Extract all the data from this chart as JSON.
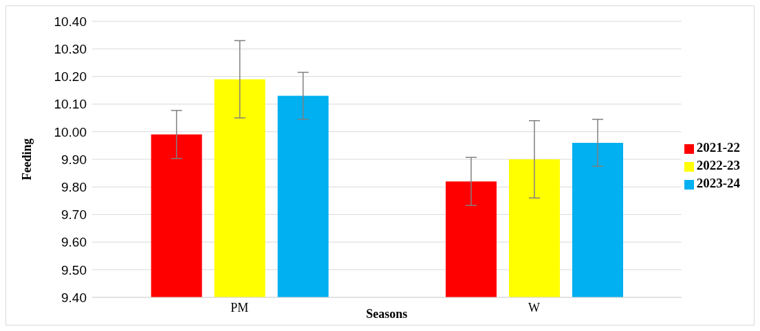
{
  "chart_data": {
    "type": "bar",
    "xlabel": "Seasons",
    "ylabel": "Feeding",
    "categories": [
      "PM",
      "W"
    ],
    "series": [
      {
        "name": "2021-22",
        "color": "#ff0000",
        "values": [
          9.99,
          9.82
        ],
        "errors": [
          0.087,
          0.087
        ]
      },
      {
        "name": "2022-23",
        "color": "#ffff00",
        "values": [
          10.19,
          9.9
        ],
        "errors": [
          0.14,
          0.14
        ]
      },
      {
        "name": "2023-24",
        "color": "#00b0f0",
        "values": [
          10.13,
          9.96
        ],
        "errors": [
          0.085,
          0.085
        ]
      }
    ],
    "ylim": [
      9.4,
      10.4
    ],
    "yticks": [
      {
        "value": 9.4,
        "label": "9.40"
      },
      {
        "value": 9.5,
        "label": "9.50"
      },
      {
        "value": 9.6,
        "label": "9.60"
      },
      {
        "value": 9.7,
        "label": "9.70"
      },
      {
        "value": 9.8,
        "label": "9.80"
      },
      {
        "value": 9.9,
        "label": "9.90"
      },
      {
        "value": 10,
        "label": "10.00"
      },
      {
        "value": 10.1,
        "label": "10.10"
      },
      {
        "value": 10.2,
        "label": "10.20"
      },
      {
        "value": 10.3,
        "label": "10.30"
      },
      {
        "value": 10.4,
        "label": "10.40"
      }
    ],
    "grid": "y",
    "legend": "right"
  }
}
